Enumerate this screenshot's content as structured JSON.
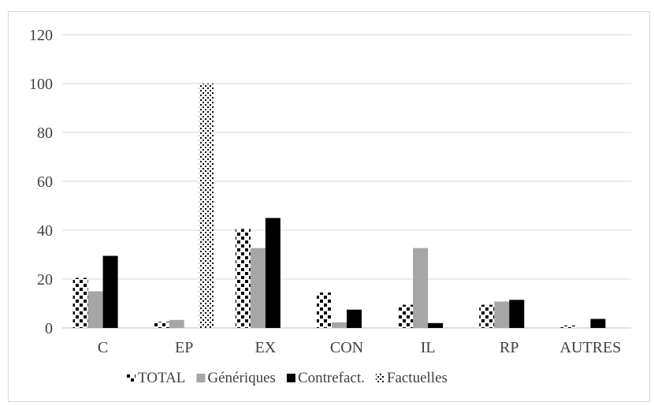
{
  "chart_data": {
    "type": "bar",
    "title": "",
    "xlabel": "",
    "ylabel": "",
    "ylim": [
      0,
      120
    ],
    "yticks": [
      0,
      20,
      40,
      60,
      80,
      100,
      120
    ],
    "grid": true,
    "legend_position": "bottom",
    "categories": [
      "C",
      "EP",
      "EX",
      "CON",
      "IL",
      "RP",
      "AUTRES"
    ],
    "series": [
      {
        "name": "TOTAL",
        "pattern": "large-dots",
        "color": "#000000",
        "values": [
          20.5,
          2.5,
          40.5,
          14.5,
          9.5,
          9.5,
          1
        ]
      },
      {
        "name": "Génériques",
        "pattern": "solid",
        "color": "#a6a6a6",
        "values": [
          15,
          3.3,
          32.7,
          2.3,
          32.7,
          10.8,
          0
        ]
      },
      {
        "name": "Contrefact.",
        "pattern": "solid",
        "color": "#000000",
        "values": [
          29.5,
          0,
          45,
          7.5,
          2,
          11.5,
          3.7
        ]
      },
      {
        "name": "Factuelles",
        "pattern": "small-dots",
        "color": "#000000",
        "values": [
          0,
          100,
          0,
          0,
          0,
          0,
          0
        ]
      }
    ]
  }
}
